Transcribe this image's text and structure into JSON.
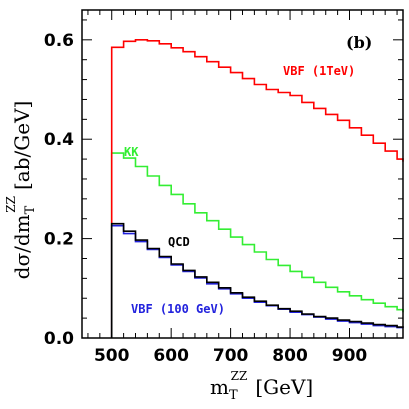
{
  "chart_data": {
    "type": "line",
    "panel_label": "(b)",
    "xlabel": {
      "main": "m",
      "sub": "T",
      "sup": "ZZ",
      "unit": "[GeV]"
    },
    "ylabel": {
      "prefix": "dσ/dm",
      "sub": "T",
      "sup": "ZZ",
      "unit": "[ab/GeV]"
    },
    "xlim": [
      450,
      990
    ],
    "ylim": [
      0,
      0.66
    ],
    "xticks": [
      500,
      600,
      700,
      800,
      900
    ],
    "yticks": [
      0.0,
      0.2,
      0.4,
      0.6
    ],
    "ytick_labels": [
      "0.0",
      "0.2",
      "0.4",
      "0.6"
    ],
    "series": [
      {
        "name": "VBF (1TeV)",
        "color": "#ff0000",
        "step": true,
        "x": [
          500,
          520,
          540,
          560,
          580,
          600,
          620,
          640,
          660,
          680,
          700,
          720,
          740,
          760,
          780,
          800,
          820,
          840,
          860,
          880,
          900,
          920,
          940,
          960,
          980,
          990
        ],
        "values": [
          0.585,
          0.597,
          0.6,
          0.598,
          0.592,
          0.584,
          0.576,
          0.566,
          0.556,
          0.545,
          0.534,
          0.522,
          0.51,
          0.5,
          0.494,
          0.488,
          0.474,
          0.462,
          0.45,
          0.438,
          0.423,
          0.408,
          0.392,
          0.376,
          0.36,
          0.355
        ]
      },
      {
        "name": "KK",
        "color": "#33ee33",
        "step": true,
        "x": [
          500,
          520,
          540,
          560,
          580,
          600,
          620,
          640,
          660,
          680,
          700,
          720,
          740,
          760,
          780,
          800,
          820,
          840,
          860,
          880,
          900,
          920,
          940,
          960,
          980,
          990
        ],
        "values": [
          0.372,
          0.362,
          0.345,
          0.326,
          0.307,
          0.289,
          0.27,
          0.252,
          0.236,
          0.219,
          0.203,
          0.188,
          0.173,
          0.158,
          0.146,
          0.134,
          0.122,
          0.112,
          0.102,
          0.093,
          0.085,
          0.077,
          0.07,
          0.063,
          0.057,
          0.052
        ]
      },
      {
        "name": "QCD",
        "color": "#000000",
        "step": true,
        "x": [
          500,
          520,
          540,
          560,
          580,
          600,
          620,
          640,
          660,
          680,
          700,
          720,
          740,
          760,
          780,
          800,
          820,
          840,
          860,
          880,
          900,
          920,
          940,
          960,
          980,
          990
        ],
        "values": [
          0.23,
          0.215,
          0.197,
          0.18,
          0.164,
          0.149,
          0.136,
          0.123,
          0.112,
          0.101,
          0.091,
          0.082,
          0.074,
          0.066,
          0.059,
          0.054,
          0.048,
          0.043,
          0.04,
          0.036,
          0.033,
          0.03,
          0.027,
          0.025,
          0.022,
          0.021
        ]
      },
      {
        "name": "VBF (100 GeV)",
        "color": "#2222dd",
        "step": true,
        "x": [
          500,
          520,
          540,
          560,
          580,
          600,
          620,
          640,
          660,
          680,
          700,
          720,
          740,
          760,
          780,
          800,
          820,
          840,
          860,
          880,
          900,
          920,
          940,
          960,
          980,
          990
        ],
        "values": [
          0.226,
          0.21,
          0.194,
          0.178,
          0.162,
          0.147,
          0.134,
          0.121,
          0.109,
          0.099,
          0.089,
          0.08,
          0.072,
          0.065,
          0.058,
          0.052,
          0.047,
          0.042,
          0.038,
          0.034,
          0.031,
          0.028,
          0.025,
          0.023,
          0.021,
          0.02
        ]
      }
    ]
  }
}
